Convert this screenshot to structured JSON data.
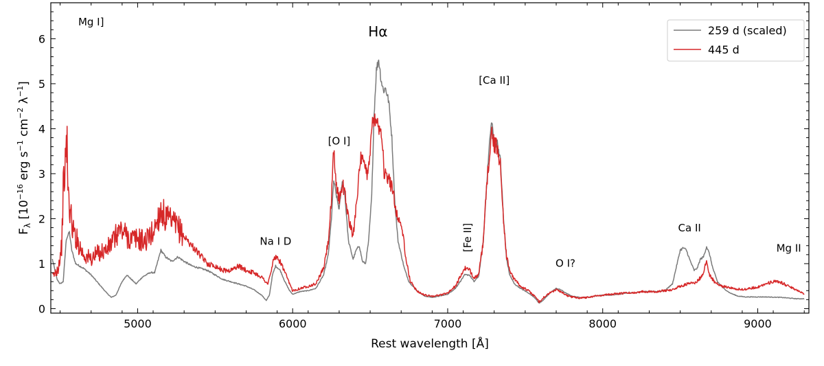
{
  "chart_data": {
    "type": "line",
    "title": "",
    "xlabel": "Rest wavelength [Å]",
    "ylabel": "F",
    "ylabel_sub": "λ",
    "ylabel_units": " [10",
    "ylabel_exp1": "−16",
    "ylabel_mid1": " erg s",
    "ylabel_exp2": "−1",
    "ylabel_mid2": " cm",
    "ylabel_exp3": "−2",
    "ylabel_mid3": " λ",
    "ylabel_exp4": "−1",
    "ylabel_end": "]",
    "xlim": [
      4440,
      9330
    ],
    "ylim": [
      -0.1,
      6.8
    ],
    "xticks": [
      5000,
      6000,
      7000,
      8000,
      9000
    ],
    "xtick_labels": [
      "5000",
      "6000",
      "7000",
      "8000",
      "9000"
    ],
    "yticks": [
      0,
      1,
      2,
      3,
      4,
      5,
      6
    ],
    "ytick_labels": [
      "0",
      "1",
      "2",
      "3",
      "4",
      "5",
      "6"
    ],
    "legend_position": "top-right",
    "series": [
      {
        "name": "259 d (scaled)",
        "color": "#7a7a7a",
        "noise": 0.02,
        "points": [
          [
            4450,
            1.1
          ],
          [
            4480,
            0.65
          ],
          [
            4500,
            0.55
          ],
          [
            4520,
            0.6
          ],
          [
            4540,
            1.55
          ],
          [
            4560,
            1.7
          ],
          [
            4575,
            1.3
          ],
          [
            4600,
            1.0
          ],
          [
            4650,
            0.9
          ],
          [
            4700,
            0.75
          ],
          [
            4750,
            0.55
          ],
          [
            4800,
            0.35
          ],
          [
            4830,
            0.25
          ],
          [
            4860,
            0.3
          ],
          [
            4900,
            0.6
          ],
          [
            4930,
            0.75
          ],
          [
            4960,
            0.65
          ],
          [
            4990,
            0.55
          ],
          [
            5030,
            0.7
          ],
          [
            5080,
            0.8
          ],
          [
            5110,
            0.8
          ],
          [
            5130,
            1.05
          ],
          [
            5150,
            1.3
          ],
          [
            5180,
            1.15
          ],
          [
            5220,
            1.05
          ],
          [
            5260,
            1.15
          ],
          [
            5300,
            1.05
          ],
          [
            5350,
            0.95
          ],
          [
            5400,
            0.9
          ],
          [
            5450,
            0.85
          ],
          [
            5500,
            0.75
          ],
          [
            5550,
            0.65
          ],
          [
            5600,
            0.6
          ],
          [
            5650,
            0.55
          ],
          [
            5700,
            0.5
          ],
          [
            5750,
            0.42
          ],
          [
            5800,
            0.3
          ],
          [
            5830,
            0.18
          ],
          [
            5850,
            0.3
          ],
          [
            5870,
            0.75
          ],
          [
            5890,
            0.95
          ],
          [
            5920,
            0.85
          ],
          [
            5950,
            0.6
          ],
          [
            5980,
            0.4
          ],
          [
            6000,
            0.32
          ],
          [
            6050,
            0.38
          ],
          [
            6100,
            0.4
          ],
          [
            6150,
            0.45
          ],
          [
            6200,
            0.75
          ],
          [
            6230,
            1.2
          ],
          [
            6250,
            2.0
          ],
          [
            6265,
            2.85
          ],
          [
            6280,
            2.55
          ],
          [
            6300,
            2.2
          ],
          [
            6320,
            2.85
          ],
          [
            6335,
            2.6
          ],
          [
            6360,
            1.5
          ],
          [
            6390,
            1.1
          ],
          [
            6410,
            1.3
          ],
          [
            6430,
            1.4
          ],
          [
            6450,
            1.05
          ],
          [
            6470,
            1.0
          ],
          [
            6490,
            1.5
          ],
          [
            6510,
            2.5
          ],
          [
            6525,
            4.3
          ],
          [
            6540,
            5.3
          ],
          [
            6555,
            5.55
          ],
          [
            6570,
            5.1
          ],
          [
            6585,
            4.85
          ],
          [
            6600,
            4.9
          ],
          [
            6620,
            4.6
          ],
          [
            6640,
            3.8
          ],
          [
            6660,
            2.3
          ],
          [
            6680,
            1.5
          ],
          [
            6700,
            1.2
          ],
          [
            6720,
            0.9
          ],
          [
            6750,
            0.6
          ],
          [
            6800,
            0.4
          ],
          [
            6850,
            0.28
          ],
          [
            6900,
            0.25
          ],
          [
            6950,
            0.28
          ],
          [
            7000,
            0.32
          ],
          [
            7050,
            0.45
          ],
          [
            7080,
            0.6
          ],
          [
            7110,
            0.75
          ],
          [
            7140,
            0.75
          ],
          [
            7170,
            0.6
          ],
          [
            7200,
            0.72
          ],
          [
            7230,
            1.5
          ],
          [
            7250,
            2.7
          ],
          [
            7270,
            3.7
          ],
          [
            7285,
            4.2
          ],
          [
            7300,
            3.6
          ],
          [
            7320,
            3.7
          ],
          [
            7340,
            3.3
          ],
          [
            7360,
            2.0
          ],
          [
            7380,
            1.1
          ],
          [
            7400,
            0.75
          ],
          [
            7430,
            0.55
          ],
          [
            7470,
            0.45
          ],
          [
            7520,
            0.35
          ],
          [
            7560,
            0.25
          ],
          [
            7590,
            0.12
          ],
          [
            7620,
            0.2
          ],
          [
            7660,
            0.35
          ],
          [
            7700,
            0.45
          ],
          [
            7730,
            0.42
          ],
          [
            7760,
            0.35
          ],
          [
            7800,
            0.28
          ],
          [
            7850,
            0.25
          ],
          [
            7900,
            0.25
          ],
          [
            7950,
            0.28
          ],
          [
            8000,
            0.3
          ],
          [
            8050,
            0.3
          ],
          [
            8100,
            0.32
          ],
          [
            8150,
            0.35
          ],
          [
            8200,
            0.35
          ],
          [
            8250,
            0.38
          ],
          [
            8300,
            0.38
          ],
          [
            8350,
            0.38
          ],
          [
            8400,
            0.4
          ],
          [
            8450,
            0.55
          ],
          [
            8480,
            1.0
          ],
          [
            8500,
            1.3
          ],
          [
            8520,
            1.35
          ],
          [
            8540,
            1.3
          ],
          [
            8560,
            1.1
          ],
          [
            8590,
            0.85
          ],
          [
            8610,
            0.9
          ],
          [
            8630,
            1.1
          ],
          [
            8650,
            1.15
          ],
          [
            8670,
            1.38
          ],
          [
            8690,
            1.2
          ],
          [
            8710,
            0.9
          ],
          [
            8740,
            0.6
          ],
          [
            8780,
            0.45
          ],
          [
            8820,
            0.35
          ],
          [
            8870,
            0.28
          ],
          [
            8920,
            0.26
          ],
          [
            8970,
            0.26
          ],
          [
            9050,
            0.26
          ],
          [
            9150,
            0.25
          ],
          [
            9250,
            0.22
          ],
          [
            9300,
            0.22
          ]
        ]
      },
      {
        "name": "445 d",
        "color": "#d62728",
        "noise": 0.06,
        "points": [
          [
            4450,
            0.7
          ],
          [
            4470,
            0.8
          ],
          [
            4490,
            0.95
          ],
          [
            4510,
            1.4
          ],
          [
            4520,
            2.6
          ],
          [
            4530,
            3.1
          ],
          [
            4540,
            3.4
          ],
          [
            4545,
            3.85
          ],
          [
            4550,
            2.6
          ],
          [
            4560,
            2.3
          ],
          [
            4580,
            1.8
          ],
          [
            4600,
            1.6
          ],
          [
            4650,
            1.2
          ],
          [
            4700,
            1.1
          ],
          [
            4750,
            1.25
          ],
          [
            4800,
            1.3
          ],
          [
            4850,
            1.55
          ],
          [
            4880,
            1.75
          ],
          [
            4910,
            1.7
          ],
          [
            4950,
            1.55
          ],
          [
            5000,
            1.55
          ],
          [
            5050,
            1.5
          ],
          [
            5100,
            1.7
          ],
          [
            5130,
            2.0
          ],
          [
            5150,
            2.2
          ],
          [
            5180,
            2.0
          ],
          [
            5220,
            1.9
          ],
          [
            5260,
            1.8
          ],
          [
            5300,
            1.6
          ],
          [
            5350,
            1.4
          ],
          [
            5400,
            1.2
          ],
          [
            5450,
            1.0
          ],
          [
            5500,
            0.95
          ],
          [
            5550,
            0.85
          ],
          [
            5600,
            0.85
          ],
          [
            5650,
            0.95
          ],
          [
            5700,
            0.85
          ],
          [
            5750,
            0.8
          ],
          [
            5800,
            0.7
          ],
          [
            5840,
            0.55
          ],
          [
            5860,
            0.8
          ],
          [
            5880,
            1.15
          ],
          [
            5900,
            1.1
          ],
          [
            5920,
            1.05
          ],
          [
            5950,
            0.8
          ],
          [
            5980,
            0.55
          ],
          [
            6000,
            0.4
          ],
          [
            6050,
            0.45
          ],
          [
            6100,
            0.5
          ],
          [
            6150,
            0.55
          ],
          [
            6200,
            0.9
          ],
          [
            6230,
            1.5
          ],
          [
            6250,
            2.4
          ],
          [
            6265,
            3.5
          ],
          [
            6280,
            2.8
          ],
          [
            6300,
            2.4
          ],
          [
            6320,
            2.8
          ],
          [
            6340,
            2.5
          ],
          [
            6360,
            2.0
          ],
          [
            6390,
            1.6
          ],
          [
            6420,
            2.7
          ],
          [
            6440,
            3.3
          ],
          [
            6460,
            3.2
          ],
          [
            6480,
            3.0
          ],
          [
            6500,
            3.5
          ],
          [
            6515,
            4.1
          ],
          [
            6530,
            4.35
          ],
          [
            6545,
            4.2
          ],
          [
            6560,
            4.0
          ],
          [
            6575,
            3.95
          ],
          [
            6590,
            3.0
          ],
          [
            6610,
            2.9
          ],
          [
            6630,
            2.8
          ],
          [
            6650,
            2.6
          ],
          [
            6670,
            2.1
          ],
          [
            6690,
            1.95
          ],
          [
            6710,
            1.7
          ],
          [
            6730,
            1.1
          ],
          [
            6760,
            0.6
          ],
          [
            6800,
            0.4
          ],
          [
            6850,
            0.3
          ],
          [
            6900,
            0.28
          ],
          [
            6950,
            0.3
          ],
          [
            7000,
            0.35
          ],
          [
            7050,
            0.5
          ],
          [
            7080,
            0.7
          ],
          [
            7110,
            0.9
          ],
          [
            7140,
            0.85
          ],
          [
            7170,
            0.7
          ],
          [
            7200,
            0.75
          ],
          [
            7230,
            1.5
          ],
          [
            7250,
            2.6
          ],
          [
            7270,
            3.5
          ],
          [
            7285,
            3.95
          ],
          [
            7300,
            3.6
          ],
          [
            7320,
            3.6
          ],
          [
            7340,
            3.2
          ],
          [
            7360,
            2.0
          ],
          [
            7380,
            1.15
          ],
          [
            7400,
            0.85
          ],
          [
            7430,
            0.65
          ],
          [
            7470,
            0.5
          ],
          [
            7520,
            0.4
          ],
          [
            7560,
            0.28
          ],
          [
            7590,
            0.15
          ],
          [
            7620,
            0.25
          ],
          [
            7660,
            0.35
          ],
          [
            7700,
            0.42
          ],
          [
            7730,
            0.38
          ],
          [
            7760,
            0.3
          ],
          [
            7800,
            0.26
          ],
          [
            7850,
            0.24
          ],
          [
            7900,
            0.25
          ],
          [
            7950,
            0.28
          ],
          [
            8000,
            0.3
          ],
          [
            8050,
            0.32
          ],
          [
            8100,
            0.33
          ],
          [
            8150,
            0.35
          ],
          [
            8200,
            0.35
          ],
          [
            8250,
            0.38
          ],
          [
            8300,
            0.38
          ],
          [
            8350,
            0.38
          ],
          [
            8400,
            0.4
          ],
          [
            8450,
            0.42
          ],
          [
            8500,
            0.5
          ],
          [
            8550,
            0.55
          ],
          [
            8600,
            0.58
          ],
          [
            8640,
            0.72
          ],
          [
            8670,
            1.05
          ],
          [
            8690,
            0.75
          ],
          [
            8720,
            0.6
          ],
          [
            8760,
            0.5
          ],
          [
            8800,
            0.48
          ],
          [
            8850,
            0.45
          ],
          [
            8900,
            0.42
          ],
          [
            8950,
            0.45
          ],
          [
            9000,
            0.48
          ],
          [
            9050,
            0.55
          ],
          [
            9100,
            0.6
          ],
          [
            9150,
            0.58
          ],
          [
            9200,
            0.5
          ],
          [
            9250,
            0.42
          ],
          [
            9300,
            0.33
          ]
        ]
      }
    ],
    "annotations": [
      {
        "text": "Mg I]",
        "x": 4700,
        "y": 6.3,
        "big": false,
        "rotate": false
      },
      {
        "text": "Hα",
        "x": 6550,
        "y": 6.05,
        "big": true,
        "rotate": false
      },
      {
        "text": "[Ca II]",
        "x": 7300,
        "y": 5.0,
        "big": false,
        "rotate": false
      },
      {
        "text": "[O I]",
        "x": 6300,
        "y": 3.65,
        "big": false,
        "rotate": false
      },
      {
        "text": "Na I D",
        "x": 5890,
        "y": 1.42,
        "big": false,
        "rotate": false
      },
      {
        "text": "[Fe II]",
        "x": 7150,
        "y": 1.58,
        "big": false,
        "rotate": true
      },
      {
        "text": "O I?",
        "x": 7760,
        "y": 0.93,
        "big": false,
        "rotate": false
      },
      {
        "text": "Ca II",
        "x": 8560,
        "y": 1.72,
        "big": false,
        "rotate": false
      },
      {
        "text": "Mg II",
        "x": 9200,
        "y": 1.27,
        "big": false,
        "rotate": false
      }
    ]
  }
}
